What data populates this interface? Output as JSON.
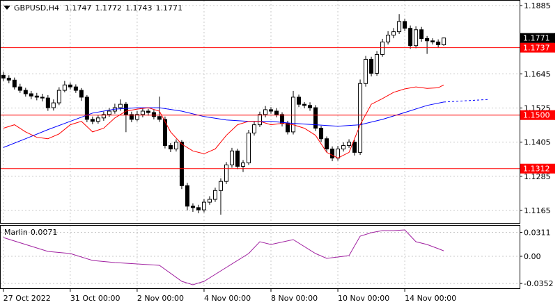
{
  "chart_data": [
    {
      "type": "candlestick",
      "title": "GBPUSD,H4",
      "xlim": [
        -0.6,
        92.6
      ],
      "ylim": [
        1.1121,
        1.1902
      ],
      "yticks": [
        1.1885,
        1.1645,
        1.1525,
        1.1405,
        1.1285,
        1.1165
      ],
      "grid": true,
      "up_color": "#ffffff",
      "down_color": "#000000",
      "open": [
        1.164,
        1.163,
        1.1623,
        1.1599,
        1.1587,
        1.1575,
        1.1567,
        1.1563,
        1.156,
        1.1526,
        1.1543,
        1.1587,
        1.1606,
        1.1599,
        1.1587,
        1.1563,
        1.1485,
        1.1478,
        1.149,
        1.1502,
        1.1514,
        1.1526,
        1.1538,
        1.1502,
        1.1485,
        1.1502,
        1.1514,
        1.1509,
        1.1495,
        1.1485,
        1.1393,
        1.1381,
        1.1405,
        1.1252,
        1.118,
        1.1175,
        1.1167,
        1.1194,
        1.1204,
        1.1235,
        1.1267,
        1.1325,
        1.1374,
        1.132,
        1.1332,
        1.1437,
        1.1466,
        1.1502,
        1.1519,
        1.1514,
        1.1502,
        1.1471,
        1.1441,
        1.1563,
        1.1538,
        1.1534,
        1.1526,
        1.1454,
        1.1417,
        1.1381,
        1.1349,
        1.1381,
        1.1393,
        1.1405,
        1.1369,
        1.1611,
        1.1696,
        1.1647,
        1.1713,
        1.1757,
        1.1781,
        1.1793,
        1.1829,
        1.1805,
        1.1744,
        1.18,
        1.1769,
        1.1761,
        1.1757,
        1.1747
      ],
      "high": [
        1.1652,
        1.164,
        1.1632,
        1.161,
        1.1596,
        1.1585,
        1.1578,
        1.1575,
        1.157,
        1.1555,
        1.1598,
        1.162,
        1.1615,
        1.1608,
        1.1595,
        1.157,
        1.1495,
        1.15,
        1.1512,
        1.1525,
        1.154,
        1.1555,
        1.1546,
        1.1512,
        1.1515,
        1.1524,
        1.1522,
        1.1518,
        1.1565,
        1.1495,
        1.1402,
        1.1415,
        1.1412,
        1.1262,
        1.119,
        1.1185,
        1.1205,
        1.1215,
        1.1245,
        1.1278,
        1.1335,
        1.1385,
        1.1382,
        1.1342,
        1.1448,
        1.1478,
        1.1512,
        1.1532,
        1.1528,
        1.1524,
        1.151,
        1.148,
        1.1585,
        1.1572,
        1.1546,
        1.1545,
        1.1535,
        1.1462,
        1.1425,
        1.139,
        1.1392,
        1.1404,
        1.1415,
        1.1412,
        1.1625,
        1.1708,
        1.1705,
        1.1725,
        1.1768,
        1.1795,
        1.1806,
        1.1855,
        1.1838,
        1.1815,
        1.1812,
        1.181,
        1.1778,
        1.177,
        1.1766,
        1.1772
      ],
      "low": [
        1.162,
        1.1612,
        1.159,
        1.1578,
        1.1565,
        1.1556,
        1.1552,
        1.1548,
        1.1515,
        1.1516,
        1.1535,
        1.158,
        1.159,
        1.1578,
        1.155,
        1.1475,
        1.1468,
        1.147,
        1.148,
        1.1494,
        1.1505,
        1.1515,
        1.144,
        1.1475,
        1.1478,
        1.1492,
        1.1498,
        1.1485,
        1.1476,
        1.1383,
        1.137,
        1.1372,
        1.124,
        1.1165,
        1.116,
        1.1155,
        1.1158,
        1.1185,
        1.1195,
        1.115,
        1.1258,
        1.1315,
        1.131,
        1.13,
        1.1325,
        1.1428,
        1.1458,
        1.1492,
        1.1505,
        1.1492,
        1.146,
        1.1432,
        1.1432,
        1.1528,
        1.1524,
        1.1515,
        1.1444,
        1.1406,
        1.137,
        1.1338,
        1.134,
        1.1372,
        1.1385,
        1.1358,
        1.136,
        1.16,
        1.1636,
        1.1638,
        1.1705,
        1.1748,
        1.177,
        1.1785,
        1.1795,
        1.1733,
        1.1735,
        1.1758,
        1.1715,
        1.1748,
        1.1738,
        1.1743
      ],
      "close": [
        1.163,
        1.1623,
        1.1599,
        1.1587,
        1.1575,
        1.1567,
        1.1563,
        1.156,
        1.1526,
        1.1543,
        1.1587,
        1.1606,
        1.1599,
        1.1587,
        1.1563,
        1.1485,
        1.1478,
        1.149,
        1.1502,
        1.1514,
        1.1526,
        1.1538,
        1.1502,
        1.1485,
        1.1502,
        1.1514,
        1.1509,
        1.1495,
        1.1485,
        1.1393,
        1.1381,
        1.1405,
        1.1252,
        1.118,
        1.1175,
        1.1167,
        1.1194,
        1.1204,
        1.1235,
        1.1267,
        1.1325,
        1.1374,
        1.132,
        1.1332,
        1.1437,
        1.1466,
        1.1502,
        1.1519,
        1.1514,
        1.1502,
        1.1471,
        1.1441,
        1.1563,
        1.1538,
        1.1534,
        1.1526,
        1.1454,
        1.1417,
        1.1381,
        1.1349,
        1.1381,
        1.1393,
        1.1405,
        1.1369,
        1.1611,
        1.1696,
        1.1647,
        1.1713,
        1.1757,
        1.1781,
        1.1793,
        1.1829,
        1.1805,
        1.1744,
        1.18,
        1.1769,
        1.1761,
        1.1757,
        1.1747,
        1.1771
      ],
      "lines": [
        {
          "color": "#0000ff",
          "style": "solid",
          "x": [
            0,
            4,
            8,
            12,
            16,
            20,
            24,
            28,
            32,
            36,
            40,
            44,
            48,
            52,
            56,
            60,
            64,
            68,
            72,
            76,
            79
          ],
          "values": [
            1.1386,
            1.1417,
            1.1449,
            1.1478,
            1.1507,
            1.1521,
            1.1526,
            1.1526,
            1.1514,
            1.1495,
            1.1483,
            1.1478,
            1.1478,
            1.1471,
            1.1466,
            1.1461,
            1.1466,
            1.1485,
            1.1509,
            1.1534,
            1.1546
          ]
        },
        {
          "color": "#0000ff",
          "style": "dotted",
          "x": [
            79,
            87
          ],
          "values": [
            1.1546,
            1.1555
          ]
        },
        {
          "color": "#ff0000",
          "style": "solid",
          "x": [
            0,
            2,
            4,
            6,
            8,
            10,
            12,
            14,
            16,
            18,
            20,
            22,
            24,
            26,
            28,
            30,
            32,
            34,
            36,
            38,
            40,
            42,
            44,
            46,
            48,
            50,
            52,
            54,
            56,
            58,
            60,
            62,
            64,
            66,
            68,
            70,
            72,
            74,
            76,
            78,
            79
          ],
          "values": [
            1.1454,
            1.1466,
            1.1441,
            1.1422,
            1.1417,
            1.1434,
            1.1466,
            1.1478,
            1.1441,
            1.1454,
            1.149,
            1.1514,
            1.1521,
            1.1526,
            1.1514,
            1.1441,
            1.1398,
            1.1374,
            1.1364,
            1.1381,
            1.1429,
            1.1466,
            1.1478,
            1.1478,
            1.1466,
            1.1471,
            1.1466,
            1.1454,
            1.1429,
            1.1369,
            1.1349,
            1.1369,
            1.1466,
            1.1538,
            1.1558,
            1.158,
            1.1592,
            1.1599,
            1.1594,
            1.1596,
            1.1606
          ]
        }
      ],
      "levels": [
        1.1737,
        {
          "value": 1.15,
          "label": "1.1500"
        },
        1.1312
      ],
      "level_color": "#ff0000"
    },
    {
      "type": "line",
      "xlim": [
        -0.6,
        92.6
      ],
      "ylim": [
        -0.0414,
        0.0396
      ],
      "yticks": [
        0.0311,
        {
          "value": 0,
          "label": "0.00"
        },
        -0.0352
      ],
      "grid": true,
      "xticks": [
        {
          "value": 0,
          "label": "27 Oct 2022"
        },
        {
          "value": 12,
          "label": "31 Oct 00:00"
        },
        {
          "value": 24,
          "label": "2 Nov 00:00"
        },
        {
          "value": 36,
          "label": "4 Nov 00:00"
        },
        {
          "value": 48,
          "label": "8 Nov 00:00"
        },
        {
          "value": 60,
          "label": "10 Nov 00:00"
        },
        {
          "value": 72,
          "label": "14 Nov 00:00"
        }
      ],
      "series": [
        {
          "name": "Marlin",
          "color": "#a020a0",
          "x": [
            0,
            4,
            8,
            12,
            16,
            20,
            24,
            28,
            32,
            34,
            36,
            40,
            44,
            46,
            48,
            52,
            56,
            58,
            60,
            62,
            64,
            66,
            68,
            70,
            72,
            74,
            76,
            78,
            79
          ],
          "values": [
            0.0243,
            0.0153,
            0.0063,
            0.0036,
            -0.0054,
            -0.0081,
            -0.0099,
            -0.0117,
            -0.0324,
            -0.0369,
            -0.0324,
            -0.0144,
            0.0036,
            0.0189,
            0.0153,
            0.0216,
            0.0036,
            -0.0027,
            -0.0009,
            0.0009,
            0.0261,
            0.0306,
            0.0333,
            0.0333,
            0.0342,
            0.0189,
            0.0153,
            0.0099,
            0.0071
          ]
        }
      ]
    }
  ]
}
